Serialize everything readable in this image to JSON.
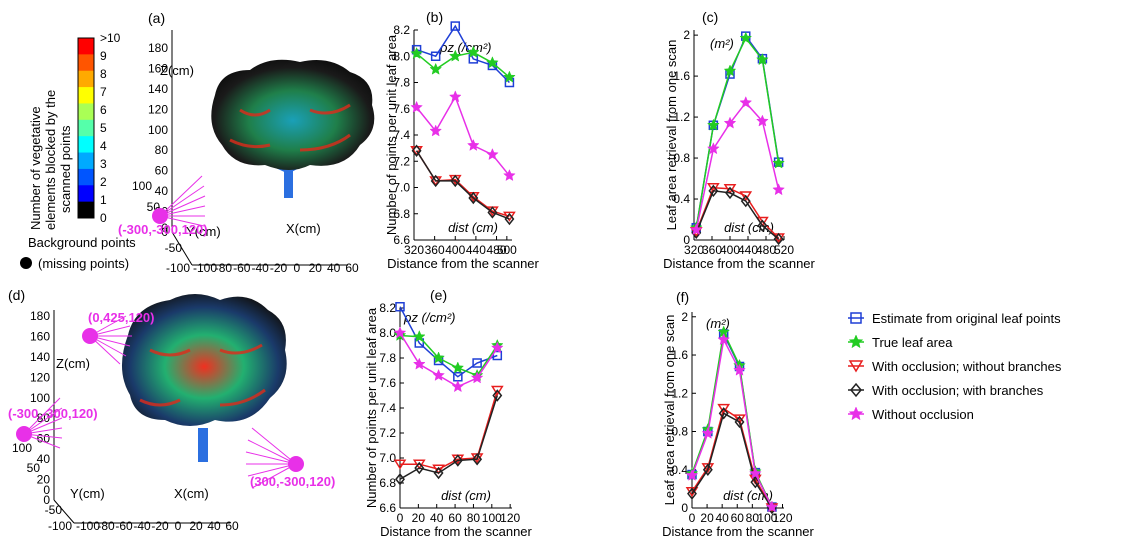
{
  "panel_labels": {
    "a": "(a)",
    "b": "(b)",
    "c": "(c)",
    "d": "(d)",
    "e": "(e)",
    "f": "(f)"
  },
  "colorbar": {
    "title_lines": [
      "Number of vegetative",
      "elements blocked by the",
      "scanned points"
    ],
    "ticks": [
      ">10",
      "9",
      "8",
      "7",
      "6",
      "5",
      "4",
      "3",
      "2",
      "1",
      "0"
    ],
    "colors": [
      "#ff0000",
      "#ff5500",
      "#ffaa00",
      "#ffff00",
      "#aaff55",
      "#55ffaa",
      "#00ffff",
      "#00aaff",
      "#0055ff",
      "#0000ff",
      "#000000"
    ]
  },
  "legend_background": {
    "line1": "Background points",
    "line2": "(missing points)"
  },
  "scene_a": {
    "z_label": "Z(cm)",
    "y_label": "Y(cm)",
    "x_label": "X(cm)",
    "z_ticks": [
      "180",
      "160",
      "140",
      "120",
      "100",
      "80",
      "60",
      "40",
      "20",
      "0"
    ],
    "y_ticks": [
      "100",
      "50",
      "0",
      "-50",
      "-100"
    ],
    "x_ticks": [
      "-100",
      "-80",
      "-60",
      "-40",
      "-20",
      "0",
      "20",
      "40",
      "60"
    ],
    "scanners": [
      "(-300,-300,120)"
    ]
  },
  "scene_d": {
    "z_label": "Z(cm)",
    "y_label": "Y(cm)",
    "x_label": "X(cm)",
    "z_ticks": [
      "180",
      "160",
      "140",
      "120",
      "100",
      "80",
      "60",
      "40",
      "20",
      "0"
    ],
    "y_ticks": [
      "100",
      "50",
      "0",
      "-50",
      "-100"
    ],
    "x_ticks": [
      "-100",
      "-80",
      "-60",
      "-40",
      "-20",
      "0",
      "20",
      "40",
      "60"
    ],
    "scanners": [
      "(0,425,120)",
      "(-300,-300,120)",
      "(300,-300,120)"
    ]
  },
  "series_styles": [
    {
      "color": "#1f3fd6",
      "marker": "square"
    },
    {
      "color": "#22cc22",
      "marker": "star"
    },
    {
      "color": "#e81e1e",
      "marker": "triangle-down"
    },
    {
      "color": "#222222",
      "marker": "diamond"
    },
    {
      "color": "#e830e8",
      "marker": "star"
    }
  ],
  "legend": {
    "entries": [
      "Estimate from original leaf points",
      "True leaf area",
      "With occlusion; without branches",
      "With occlusion; with branches",
      "Without occlusion"
    ]
  },
  "chart_data": [
    {
      "id": "b",
      "type": "line",
      "xlabel": "Distance from the scanner",
      "ylabel": "Number of points per unit leaf area",
      "unit_label": "ρz (/cm²)",
      "mid_label": "dist (cm)",
      "xlim": [
        320,
        510
      ],
      "ylim": [
        6.6,
        8.2
      ],
      "xticks": [
        320,
        360,
        400,
        440,
        480,
        500
      ],
      "yticks": [
        6.6,
        6.8,
        7.0,
        7.2,
        7.4,
        7.6,
        7.8,
        8.0,
        8.2
      ],
      "x": [
        325,
        362,
        400,
        435,
        472,
        505
      ],
      "series": [
        {
          "values": [
            8.05,
            8.0,
            8.23,
            7.98,
            7.93,
            7.8
          ]
        },
        {
          "values": [
            8.02,
            7.9,
            8.0,
            8.03,
            7.95,
            7.84
          ]
        },
        {
          "values": [
            7.28,
            7.05,
            7.06,
            6.93,
            6.82,
            6.78
          ]
        },
        {
          "values": [
            7.28,
            7.05,
            7.05,
            6.92,
            6.81,
            6.76
          ]
        },
        {
          "values": [
            7.61,
            7.43,
            7.69,
            7.32,
            7.25,
            7.09
          ]
        }
      ]
    },
    {
      "id": "c",
      "type": "line",
      "xlabel": "Distance from the scanner",
      "ylabel": "Leaf area retrieval from one scan",
      "unit_label": "(m²)",
      "mid_label": "dist (cm)",
      "xlim": [
        320,
        520
      ],
      "ylim": [
        0,
        2.05
      ],
      "xticks": [
        320,
        360,
        400,
        440,
        480,
        520
      ],
      "yticks": [
        0,
        0.4,
        0.8,
        1.2,
        1.6,
        2
      ],
      "x": [
        325,
        363,
        400,
        435,
        472,
        508
      ],
      "series": [
        {
          "values": [
            0.12,
            1.12,
            1.62,
            1.99,
            1.77,
            0.76
          ]
        },
        {
          "values": [
            0.12,
            1.12,
            1.65,
            1.97,
            1.76,
            0.75
          ]
        },
        {
          "values": [
            0.08,
            0.51,
            0.5,
            0.43,
            0.18,
            0.02
          ]
        },
        {
          "values": [
            0.07,
            0.48,
            0.46,
            0.38,
            0.14,
            0.01
          ]
        },
        {
          "values": [
            0.1,
            0.89,
            1.14,
            1.34,
            1.16,
            0.49
          ]
        }
      ]
    },
    {
      "id": "e",
      "type": "line",
      "xlabel": "Distance from the scanner",
      "ylabel": "Number of points per unit leaf area",
      "unit_label": "ρz (/cm²)",
      "mid_label": "dist (cm)",
      "xlim": [
        0,
        122
      ],
      "ylim": [
        6.6,
        8.2
      ],
      "xticks": [
        0,
        20,
        40,
        60,
        80,
        100,
        120
      ],
      "yticks": [
        6.6,
        6.8,
        7.0,
        7.2,
        7.4,
        7.6,
        7.8,
        8.0,
        8.2
      ],
      "x": [
        0,
        21,
        42,
        63,
        84,
        106
      ],
      "series": [
        {
          "values": [
            8.21,
            7.92,
            7.78,
            7.65,
            7.76,
            7.82
          ]
        },
        {
          "values": [
            7.98,
            7.97,
            7.8,
            7.72,
            7.66,
            7.9
          ]
        },
        {
          "values": [
            6.95,
            6.95,
            6.91,
            6.99,
            7.0,
            7.54
          ]
        },
        {
          "values": [
            6.83,
            6.92,
            6.88,
            6.98,
            6.99,
            7.5
          ]
        },
        {
          "values": [
            8.0,
            7.75,
            7.66,
            7.57,
            7.64,
            7.88
          ]
        }
      ]
    },
    {
      "id": "f",
      "type": "line",
      "xlabel": "Distance from the scanner",
      "ylabel": "Leaf area retrieval from one scan",
      "unit_label": "(m²)",
      "mid_label": "dist (cm)",
      "xlim": [
        0,
        122
      ],
      "ylim": [
        0,
        2.05
      ],
      "xticks": [
        0,
        20,
        40,
        60,
        80,
        100,
        120
      ],
      "yticks": [
        0,
        0.4,
        0.8,
        1.2,
        1.6,
        2
      ],
      "x": [
        0,
        21,
        42,
        63,
        84,
        106
      ],
      "series": [
        {
          "values": [
            0.35,
            0.8,
            1.82,
            1.48,
            0.37,
            0.01
          ]
        },
        {
          "values": [
            0.36,
            0.82,
            1.84,
            1.49,
            0.38,
            0.01
          ]
        },
        {
          "values": [
            0.17,
            0.42,
            1.04,
            0.93,
            0.3,
            0.0
          ]
        },
        {
          "values": [
            0.15,
            0.4,
            0.99,
            0.9,
            0.27,
            0.0
          ]
        },
        {
          "values": [
            0.34,
            0.78,
            1.76,
            1.44,
            0.36,
            0.01
          ]
        }
      ]
    }
  ]
}
